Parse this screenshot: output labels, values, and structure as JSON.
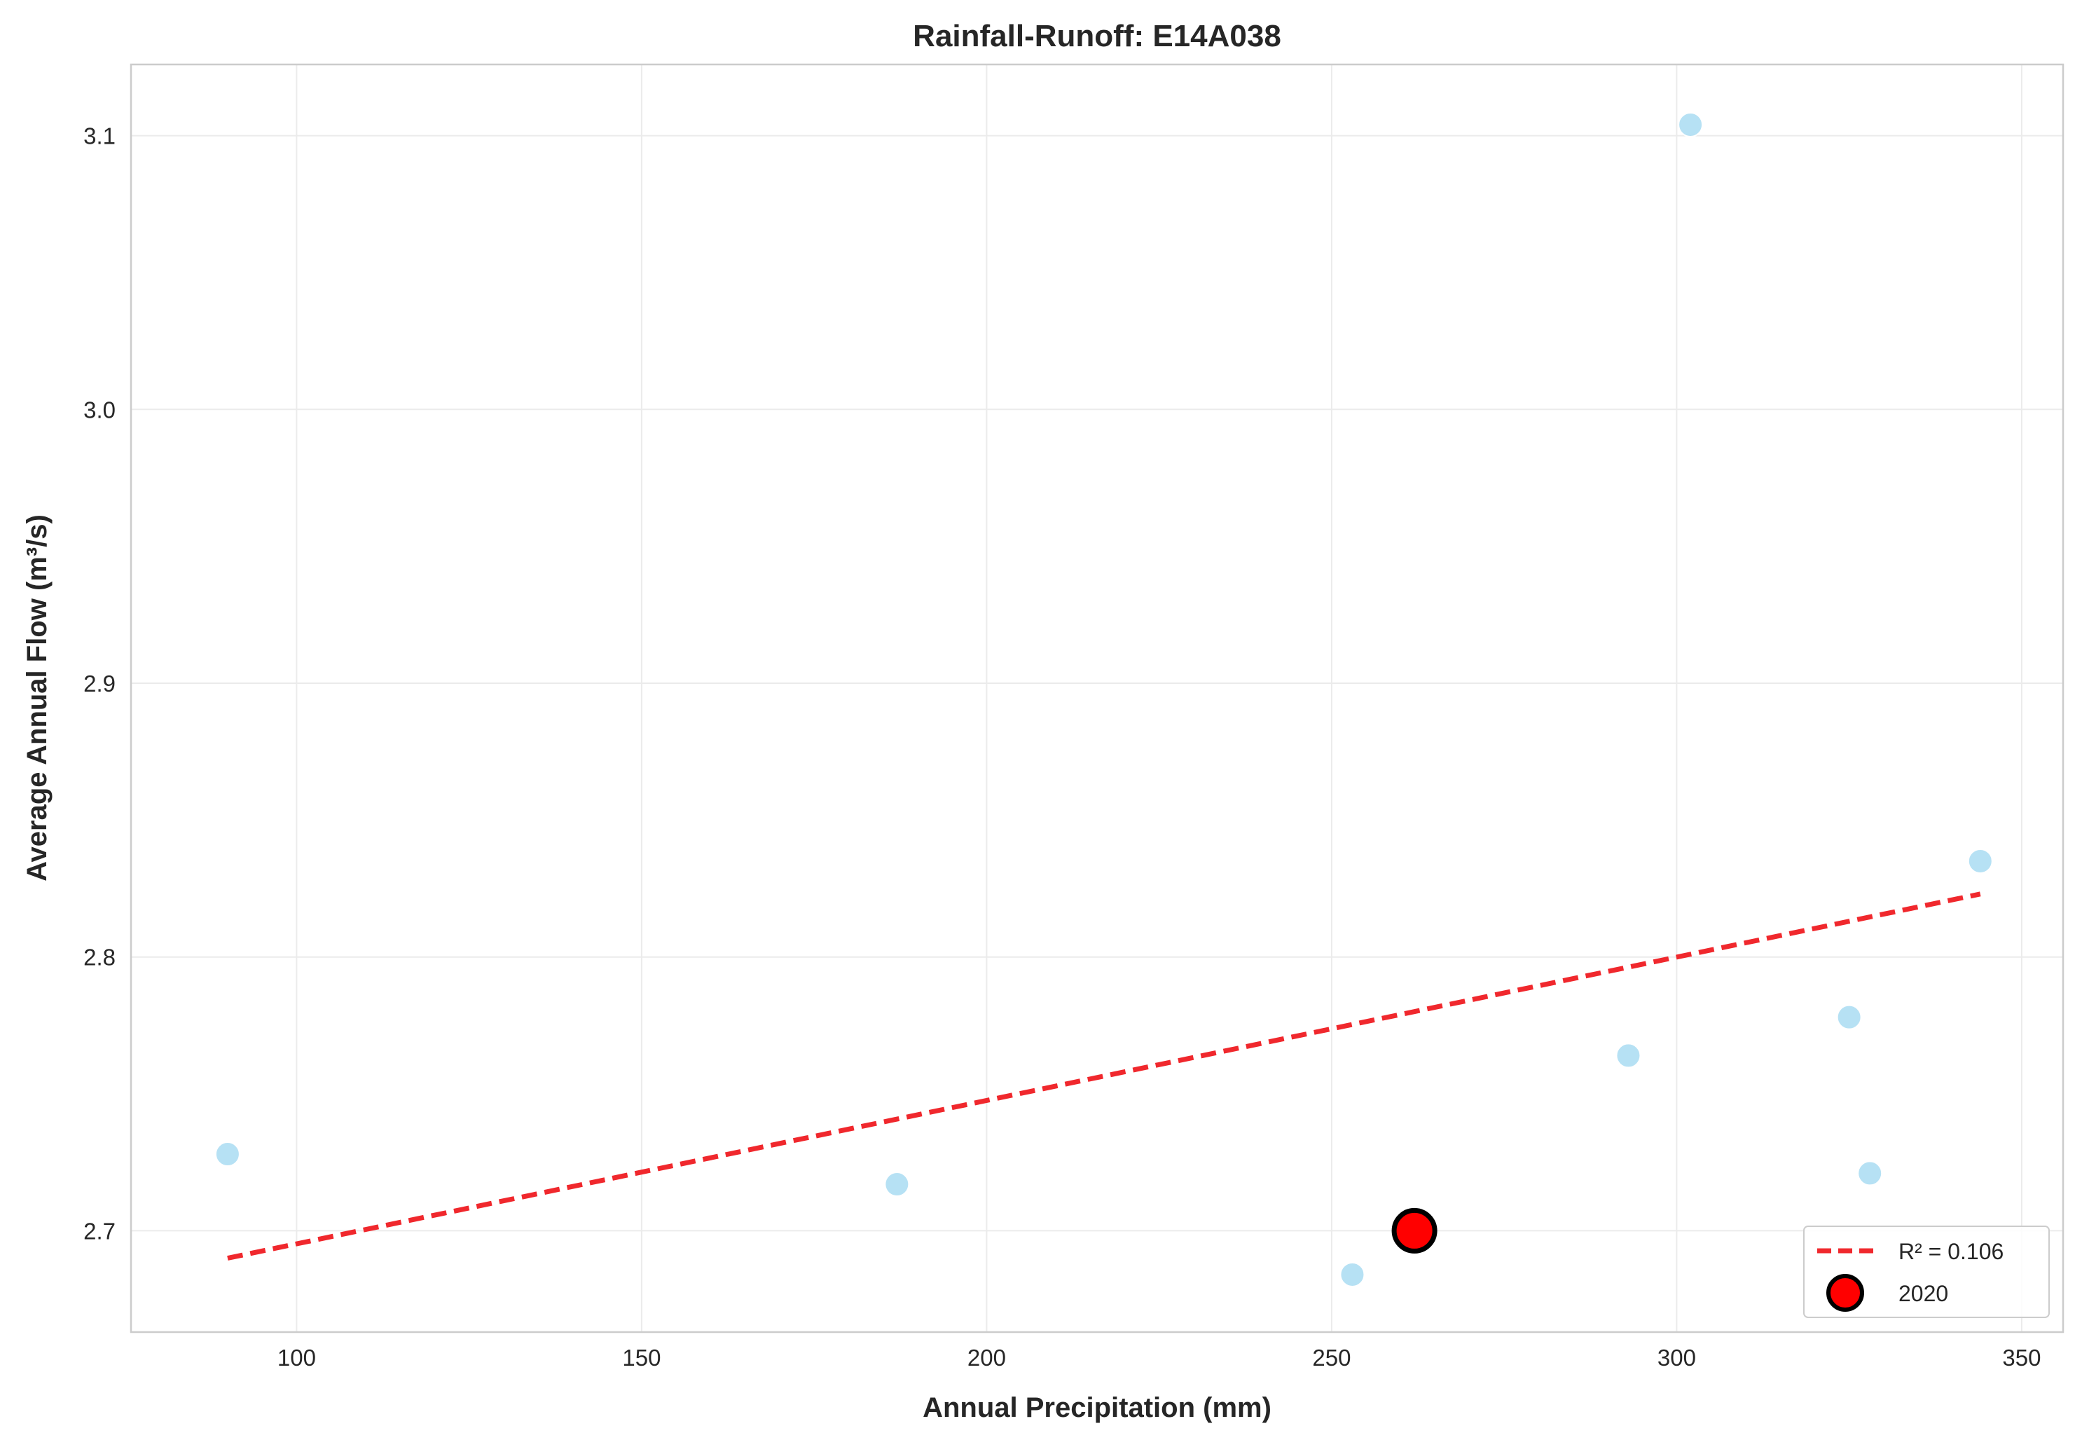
{
  "chart_data": {
    "type": "scatter",
    "title": "Rainfall-Runoff: E14A038",
    "xlabel": "Annual Precipitation (mm)",
    "ylabel": "Average Annual Flow (m³/s)",
    "xlim": [
      76,
      356
    ],
    "ylim": [
      2.663,
      3.126
    ],
    "xticks": [
      100,
      150,
      200,
      250,
      300,
      350
    ],
    "yticks": [
      2.7,
      2.8,
      2.9,
      3.0,
      3.1
    ],
    "ytick_labels": [
      "2.7",
      "2.8",
      "2.9",
      "3.0",
      "3.1"
    ],
    "grid": true,
    "legend_position": "bottom-right",
    "series": [
      {
        "kind": "points",
        "color": "#a9dcf2",
        "points": [
          {
            "x": 90,
            "y": 2.728
          },
          {
            "x": 187,
            "y": 2.717
          },
          {
            "x": 253,
            "y": 2.684
          },
          {
            "x": 293,
            "y": 2.764
          },
          {
            "x": 302,
            "y": 3.104
          },
          {
            "x": 325,
            "y": 2.778
          },
          {
            "x": 328,
            "y": 2.721
          },
          {
            "x": 344,
            "y": 2.835
          }
        ]
      },
      {
        "kind": "trendline",
        "name": "R² = 0.106",
        "color": "#f0282d",
        "style": "dashed",
        "points": [
          {
            "x": 90,
            "y": 2.69
          },
          {
            "x": 344,
            "y": 2.823
          }
        ]
      },
      {
        "kind": "highlight",
        "name": "2020",
        "color": "#ff0000",
        "edge_color": "#000000",
        "points": [
          {
            "x": 262,
            "y": 2.7
          }
        ]
      }
    ]
  }
}
